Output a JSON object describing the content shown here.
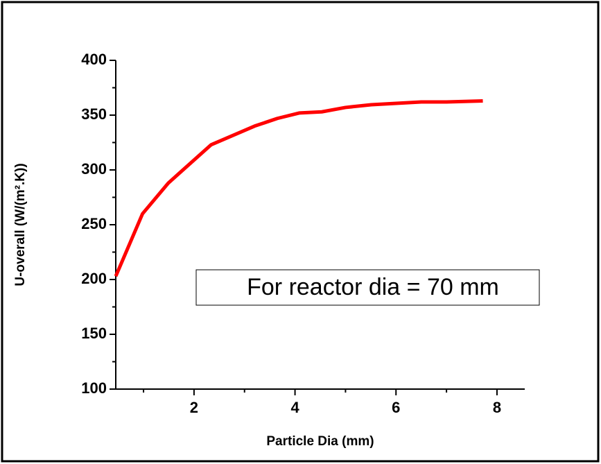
{
  "chart_data": {
    "type": "line",
    "xlabel": "Particle Dia (mm)",
    "ylabel": "U-overall (W/(m².K))",
    "annotation": "For reactor dia = 70 mm",
    "x": [
      0.45,
      0.98,
      1.49,
      2.34,
      3.2,
      3.65,
      4.09,
      4.53,
      5.0,
      5.51,
      6.5,
      7.0,
      7.72
    ],
    "series": [
      {
        "name": "U-overall",
        "color": "#ff0000",
        "values": [
          203,
          260,
          288,
          323,
          340,
          347,
          352,
          353,
          357,
          359.5,
          362,
          362,
          363
        ]
      }
    ],
    "xlim": [
      0.45,
      8.55
    ],
    "xticks": [
      2,
      4,
      6,
      8
    ],
    "xminorticks": [
      1,
      3,
      5,
      7
    ],
    "ylim": [
      100,
      400
    ],
    "yticks": [
      100,
      150,
      200,
      250,
      300,
      350,
      400
    ],
    "yminorticks": [
      125,
      175,
      225,
      275,
      325,
      375
    ]
  }
}
